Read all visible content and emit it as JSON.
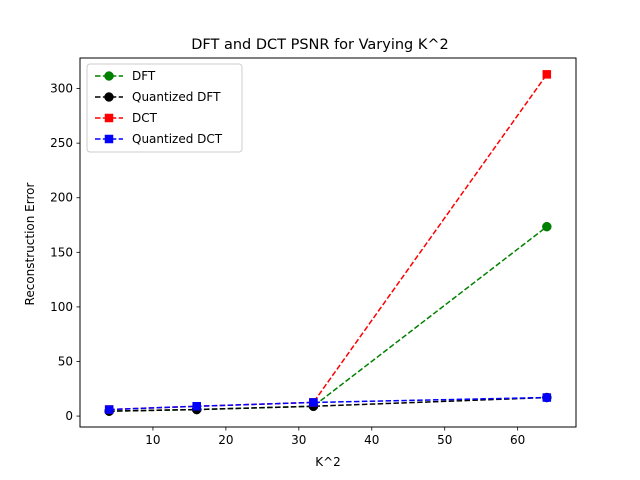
{
  "chart_data": {
    "type": "line",
    "title": "DFT and DCT PSNR for Varying K^2",
    "xlabel": "K^2",
    "ylabel": "Reconstruction Error",
    "x": [
      4,
      16,
      32,
      64
    ],
    "xlim": [
      0,
      68
    ],
    "ylim": [
      -10,
      328
    ],
    "xticks": [
      10,
      20,
      30,
      40,
      50,
      60
    ],
    "yticks": [
      0,
      50,
      100,
      150,
      200,
      250,
      300
    ],
    "grid": false,
    "legend_position": "upper left",
    "series": [
      {
        "name": "DFT",
        "color": "#008000",
        "marker": "circle",
        "linestyle": "dashed",
        "values": [
          4.5,
          6,
          9,
          173.5
        ]
      },
      {
        "name": "Quantized DFT",
        "color": "#000000",
        "marker": "circle",
        "linestyle": "dashed",
        "values": [
          4.5,
          6,
          9,
          17
        ]
      },
      {
        "name": "DCT",
        "color": "#ff0000",
        "marker": "square",
        "linestyle": "dashed",
        "values": [
          6,
          9,
          12.5,
          313
        ]
      },
      {
        "name": "Quantized DCT",
        "color": "#0000ff",
        "marker": "square",
        "linestyle": "dashed",
        "values": [
          6,
          9,
          12.5,
          17
        ]
      }
    ]
  }
}
